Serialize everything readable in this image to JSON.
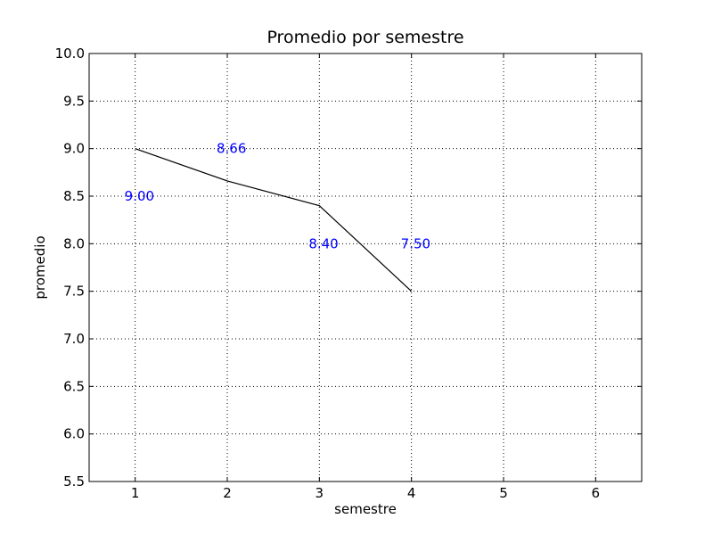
{
  "chart_data": {
    "type": "line",
    "title": "Promedio por semestre",
    "xlabel": "semestre",
    "ylabel": "promedio",
    "xlim": [
      0.5,
      6.5
    ],
    "ylim": [
      5.5,
      10.0
    ],
    "xticks": [
      1,
      2,
      3,
      4,
      5,
      6
    ],
    "yticks": [
      5.5,
      6.0,
      6.5,
      7.0,
      7.5,
      8.0,
      8.5,
      9.0,
      9.5,
      10.0
    ],
    "xtick_labels": [
      "1",
      "2",
      "3",
      "4",
      "5",
      "6"
    ],
    "ytick_labels": [
      "5.5",
      "6.0",
      "6.5",
      "7.0",
      "7.5",
      "8.0",
      "8.5",
      "9.0",
      "9.5",
      "10.0"
    ],
    "grid": true,
    "series": [
      {
        "x": [
          1,
          2,
          3,
          4
        ],
        "y": [
          9.0,
          8.66,
          8.4,
          7.5
        ],
        "color": "#000000"
      }
    ],
    "data_labels": [
      {
        "text": "9.00",
        "x": 1,
        "y": 8.5
      },
      {
        "text": "8.66",
        "x": 2,
        "y": 9.0
      },
      {
        "text": "8.40",
        "x": 3,
        "y": 8.0
      },
      {
        "text": "7.50",
        "x": 4,
        "y": 8.0
      }
    ],
    "label_color": "#0000ff"
  }
}
